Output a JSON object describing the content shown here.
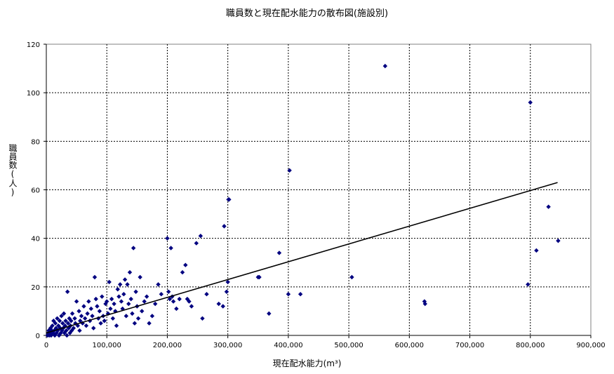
{
  "chart_data": {
    "type": "scatter",
    "title": "職員数と現在配水能力の散布図(施設別)",
    "xlabel": "現在配水能力(m³)",
    "ylabel": "職員数(人)",
    "xlim": [
      0,
      900000
    ],
    "ylim": [
      0,
      120
    ],
    "x_ticks": [
      0,
      100000,
      200000,
      300000,
      400000,
      500000,
      600000,
      700000,
      800000,
      900000
    ],
    "x_tick_labels": [
      "0",
      "100,000",
      "200,000",
      "300,000",
      "400,000",
      "500,000",
      "600,000",
      "700,000",
      "800,000",
      "900,000"
    ],
    "y_ticks": [
      0,
      20,
      40,
      60,
      80,
      100,
      120
    ],
    "y_tick_labels": [
      "0",
      "20",
      "40",
      "60",
      "80",
      "100",
      "120"
    ],
    "grid": true,
    "legend": "none",
    "marker_color": "#000080",
    "trendline": {
      "x": [
        0,
        845000
      ],
      "y": [
        1,
        63
      ],
      "color": "#000000"
    },
    "series": [
      {
        "points": [
          [
            2000,
            0
          ],
          [
            3000,
            1
          ],
          [
            4000,
            2
          ],
          [
            5000,
            0
          ],
          [
            6000,
            1
          ],
          [
            7000,
            3
          ],
          [
            8000,
            0
          ],
          [
            9000,
            2
          ],
          [
            10000,
            4
          ],
          [
            11000,
            1
          ],
          [
            12000,
            6
          ],
          [
            13000,
            2
          ],
          [
            14000,
            0
          ],
          [
            15000,
            5
          ],
          [
            16000,
            3
          ],
          [
            17000,
            1
          ],
          [
            18000,
            7
          ],
          [
            19000,
            2
          ],
          [
            20000,
            4
          ],
          [
            21000,
            0
          ],
          [
            22000,
            6
          ],
          [
            23000,
            3
          ],
          [
            24000,
            1
          ],
          [
            25000,
            8
          ],
          [
            26000,
            2
          ],
          [
            27000,
            5
          ],
          [
            28000,
            3
          ],
          [
            29000,
            9
          ],
          [
            30000,
            1
          ],
          [
            31000,
            4
          ],
          [
            32000,
            6
          ],
          [
            33000,
            2
          ],
          [
            34000,
            0
          ],
          [
            35000,
            18
          ],
          [
            36000,
            5
          ],
          [
            37000,
            3
          ],
          [
            38000,
            7
          ],
          [
            39000,
            1
          ],
          [
            40000,
            4
          ],
          [
            41000,
            6
          ],
          [
            42000,
            2
          ],
          [
            43000,
            9
          ],
          [
            45000,
            3
          ],
          [
            47000,
            7
          ],
          [
            48000,
            5
          ],
          [
            50000,
            14
          ],
          [
            52000,
            4
          ],
          [
            54000,
            10
          ],
          [
            55000,
            2
          ],
          [
            56000,
            6
          ],
          [
            58000,
            8
          ],
          [
            60000,
            5
          ],
          [
            62000,
            12
          ],
          [
            64000,
            7
          ],
          [
            66000,
            4
          ],
          [
            68000,
            9
          ],
          [
            70000,
            14
          ],
          [
            72000,
            6
          ],
          [
            74000,
            11
          ],
          [
            76000,
            8
          ],
          [
            78000,
            3
          ],
          [
            80000,
            24
          ],
          [
            82000,
            15
          ],
          [
            84000,
            12
          ],
          [
            86000,
            7
          ],
          [
            88000,
            10
          ],
          [
            90000,
            5
          ],
          [
            92000,
            16
          ],
          [
            94000,
            8
          ],
          [
            96000,
            6
          ],
          [
            98000,
            13
          ],
          [
            100000,
            14
          ],
          [
            102000,
            9
          ],
          [
            104000,
            22
          ],
          [
            106000,
            11
          ],
          [
            108000,
            15
          ],
          [
            110000,
            7
          ],
          [
            112000,
            13
          ],
          [
            114000,
            10
          ],
          [
            116000,
            4
          ],
          [
            118000,
            19
          ],
          [
            120000,
            16
          ],
          [
            122000,
            21
          ],
          [
            124000,
            14
          ],
          [
            126000,
            11
          ],
          [
            128000,
            17
          ],
          [
            130000,
            23
          ],
          [
            132000,
            8
          ],
          [
            134000,
            21
          ],
          [
            136000,
            13
          ],
          [
            138000,
            26
          ],
          [
            140000,
            15
          ],
          [
            142000,
            9
          ],
          [
            144000,
            36
          ],
          [
            146000,
            5
          ],
          [
            148000,
            18
          ],
          [
            150000,
            12
          ],
          [
            152000,
            7
          ],
          [
            155000,
            24
          ],
          [
            158000,
            10
          ],
          [
            162000,
            14
          ],
          [
            166000,
            16
          ],
          [
            170000,
            5
          ],
          [
            175000,
            8
          ],
          [
            180000,
            13
          ],
          [
            185000,
            21
          ],
          [
            190000,
            17
          ],
          [
            200000,
            40
          ],
          [
            202000,
            18
          ],
          [
            204000,
            15
          ],
          [
            206000,
            36
          ],
          [
            208000,
            16
          ],
          [
            210000,
            14
          ],
          [
            215000,
            11
          ],
          [
            220000,
            15
          ],
          [
            225000,
            26
          ],
          [
            230000,
            29
          ],
          [
            233000,
            15
          ],
          [
            236000,
            14
          ],
          [
            240000,
            12
          ],
          [
            248000,
            38
          ],
          [
            255000,
            41
          ],
          [
            258000,
            7
          ],
          [
            265000,
            17
          ],
          [
            285000,
            13
          ],
          [
            292000,
            12
          ],
          [
            294000,
            45
          ],
          [
            298000,
            18
          ],
          [
            300000,
            22
          ],
          [
            301000,
            56
          ],
          [
            302000,
            56
          ],
          [
            350000,
            24
          ],
          [
            352000,
            24
          ],
          [
            368000,
            9
          ],
          [
            385000,
            34
          ],
          [
            400000,
            17
          ],
          [
            402000,
            68
          ],
          [
            420000,
            17
          ],
          [
            505000,
            24
          ],
          [
            560000,
            111
          ],
          [
            625000,
            14
          ],
          [
            626000,
            13
          ],
          [
            796000,
            21
          ],
          [
            800000,
            96
          ],
          [
            830000,
            53
          ],
          [
            810000,
            35
          ],
          [
            846000,
            39
          ]
        ]
      }
    ]
  }
}
